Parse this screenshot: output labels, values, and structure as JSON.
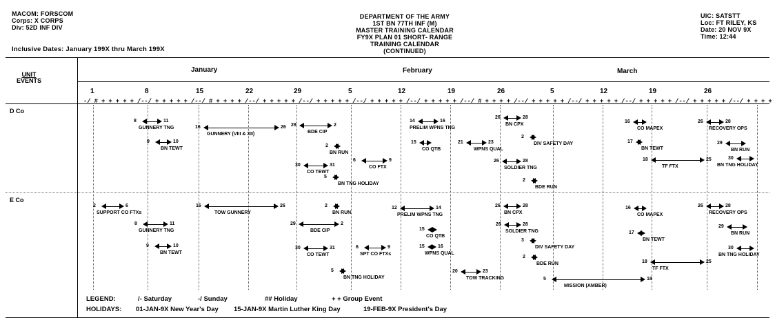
{
  "header": {
    "left": [
      "MACOM:  FORSCOM",
      "Corps:  X CORPS",
      "Div:  52D INF DIV"
    ],
    "inclusive": "Inclusive Dates: January 199X thru March 199X",
    "center": [
      "DEPARTMENT OF THE ARMY",
      "1ST BN 77TH INF (M)",
      "MASTER TRAINING CALENDAR",
      "FY9X PLAN 01 SHORT- RANGE",
      "TRAINING CALENDAR",
      "(CONTINUED)"
    ],
    "right": [
      "UIC:  SATSTT",
      "Loc:  FT RILEY, KS",
      "Date:  20 NOV 9X",
      "Time:  12:44"
    ]
  },
  "unit_events_label": [
    "UNIT",
    "EVENTS"
  ],
  "months": [
    "January",
    "February",
    "March"
  ],
  "week_days": [
    "1",
    "8",
    "15",
    "22",
    "29",
    "5",
    "12",
    "19",
    "26",
    "5",
    "12",
    "19",
    "26"
  ],
  "tick_row": "-/ # + + + + + /--/ + + + + + /--/ # + + + + /--/ + + + + + /--/ + + + + + /--/ + + + + + /--/ + + + + + /--/ # + + + + /--/ + + + + + /--/ + + + + + /--/ + + + + + /--/ + + + + + /--/ + + + + + /-",
  "units": [
    "D Co",
    "E Co"
  ],
  "events": {
    "d_co": [
      {
        "s": "8",
        "e": "11",
        "label": "GUNNERY TNG"
      },
      {
        "s": "16",
        "e": "26",
        "label": "GUNNERY (VIII & XII)"
      },
      {
        "s": "29",
        "e": "2",
        "label": "BDE CIP"
      },
      {
        "s": "9",
        "e": "10",
        "label": "BN TEWT"
      },
      {
        "s": "2",
        "e": "",
        "label": "BN RUN"
      },
      {
        "s": "6",
        "e": "9",
        "label": "CO FTX"
      },
      {
        "s": "30",
        "e": "31",
        "label": "CO TEWT"
      },
      {
        "s": "5",
        "e": "",
        "label": "BN TNG HOLIDAY"
      },
      {
        "s": "14",
        "e": "16",
        "label": "PRELIM WPNS TNG"
      },
      {
        "s": "15",
        "e": "",
        "label": "CO QTB"
      },
      {
        "s": "21",
        "e": "23",
        "label": "WPNS QUAL"
      },
      {
        "s": "26",
        "e": "28",
        "label": "BN CPX"
      },
      {
        "s": "2",
        "e": "",
        "label": "DIV SAFETY DAY"
      },
      {
        "s": "26",
        "e": "28",
        "label": "SOLDIER TNG"
      },
      {
        "s": "2",
        "e": "",
        "label": "BDE RUN"
      },
      {
        "s": "16",
        "e": "",
        "label": "CO MAPEX"
      },
      {
        "s": "17",
        "e": "",
        "label": "BN TEWT"
      },
      {
        "s": "18",
        "e": "25",
        "label": "TF FTX"
      },
      {
        "s": "26",
        "e": "28",
        "label": "RECOVERY OPS"
      },
      {
        "s": "29",
        "e": "",
        "label": "BN RUN"
      },
      {
        "s": "30",
        "e": "",
        "label": "BN TNG HOLIDAY"
      }
    ],
    "e_co": [
      {
        "s": "2",
        "e": "6",
        "label": "SUPPORT CO FTXs"
      },
      {
        "s": "16",
        "e": "26",
        "label": "TOW GUNNERY"
      },
      {
        "s": "8",
        "e": "11",
        "label": "GUNNERY TNG"
      },
      {
        "s": "9",
        "e": "10",
        "label": "BN TEWT"
      },
      {
        "s": "29",
        "e": "2",
        "label": "BDE CIP"
      },
      {
        "s": "2",
        "e": "",
        "label": "BN RUN"
      },
      {
        "s": "30",
        "e": "31",
        "label": "CO TEWT"
      },
      {
        "s": "6",
        "e": "9",
        "label": "SPT CO FTXs"
      },
      {
        "s": "5",
        "e": "",
        "label": "BN TNG HOLIDAY"
      },
      {
        "s": "12",
        "e": "14",
        "label": "PRELIM WPNS TNG"
      },
      {
        "s": "15",
        "e": "",
        "label": "CO QTB"
      },
      {
        "s": "15",
        "e": "16",
        "label": "WPNS QUAL"
      },
      {
        "s": "20",
        "e": "23",
        "label": "TOW TRACKING"
      },
      {
        "s": "26",
        "e": "28",
        "label": "BN CPX"
      },
      {
        "s": "26",
        "e": "28",
        "label": "SOLDIER TNG"
      },
      {
        "s": "3",
        "e": "",
        "label": "DIV SAFETY DAY"
      },
      {
        "s": "2",
        "e": "",
        "label": "BDE RUN"
      },
      {
        "s": "5",
        "e": "18",
        "label": "MISSION (AMBER)"
      },
      {
        "s": "16",
        "e": "",
        "label": "CO MAPEX"
      },
      {
        "s": "17",
        "e": "",
        "label": "BN TEWT"
      },
      {
        "s": "18",
        "e": "25",
        "label": "TF FTX"
      },
      {
        "s": "26",
        "e": "28",
        "label": "RECOVERY OPS"
      },
      {
        "s": "29",
        "e": "",
        "label": "BN RUN"
      },
      {
        "s": "30",
        "e": "",
        "label": "BN TNG HOLIDAY"
      }
    ]
  },
  "legend": {
    "title": "LEGEND:",
    "saturday": "/- Saturday",
    "sunday": "-/ Sunday",
    "holiday": "## Holiday",
    "group": "+ +  Group Event",
    "holidays_title": "HOLIDAYS:",
    "h1": "01-JAN-9X New Year's Day",
    "h2": "15-JAN-9X Martin Luther King Day",
    "h3": "19-FEB-9X President's Day"
  }
}
